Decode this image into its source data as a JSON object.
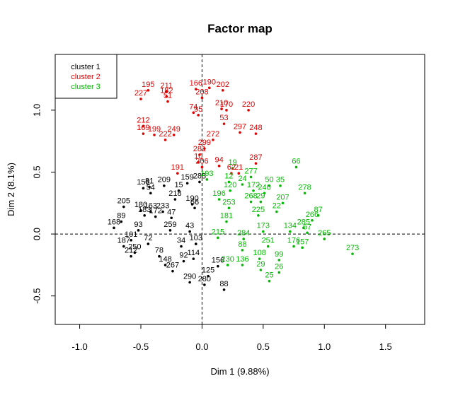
{
  "chart_data": {
    "type": "scatter",
    "title": "Factor map",
    "xlabel": "Dim 1 (9.88%)",
    "ylabel": "Dim 2 (8.1%)",
    "xlim": [
      -1.2,
      1.82
    ],
    "ylim": [
      -0.73,
      1.45
    ],
    "xticks": [
      -1.0,
      -0.5,
      0.0,
      0.5,
      1.0,
      1.5
    ],
    "xtick_labels": [
      "-1.0",
      "-0.5",
      "0.0",
      "0.5",
      "1.0",
      "1.5"
    ],
    "yticks": [
      -0.5,
      0.0,
      0.5,
      1.0
    ],
    "ytick_labels": [
      "-0.5",
      "0.0",
      "0.5",
      "1.0"
    ],
    "reference_lines": {
      "x": 0,
      "y": 0,
      "style": "dashed"
    },
    "legend": {
      "position": "top-left",
      "entries": [
        {
          "label": "cluster 1",
          "color": "#000000"
        },
        {
          "label": "cluster 2",
          "color": "#dd0000"
        },
        {
          "label": "cluster 3",
          "color": "#00bb00"
        }
      ]
    },
    "series": [
      {
        "name": "cluster 1",
        "color": "#000000",
        "points": [
          {
            "x": -0.48,
            "y": 0.37,
            "label": "158"
          },
          {
            "x": -0.43,
            "y": 0.38,
            "label": "81"
          },
          {
            "x": -0.31,
            "y": 0.39,
            "label": "209"
          },
          {
            "x": -0.42,
            "y": 0.33,
            "label": "54"
          },
          {
            "x": -0.19,
            "y": 0.35,
            "label": "15"
          },
          {
            "x": -0.12,
            "y": 0.41,
            "label": "159"
          },
          {
            "x": -0.02,
            "y": 0.42,
            "label": "288"
          },
          {
            "x": -0.22,
            "y": 0.28,
            "label": "218"
          },
          {
            "x": -0.64,
            "y": 0.22,
            "label": "205"
          },
          {
            "x": -0.5,
            "y": 0.19,
            "label": "180"
          },
          {
            "x": -0.42,
            "y": 0.18,
            "label": "163"
          },
          {
            "x": -0.32,
            "y": 0.18,
            "label": "233"
          },
          {
            "x": -0.47,
            "y": 0.15,
            "label": "183"
          },
          {
            "x": -0.38,
            "y": 0.14,
            "label": "172"
          },
          {
            "x": -0.25,
            "y": 0.13,
            "label": "47"
          },
          {
            "x": -0.08,
            "y": 0.24,
            "label": "190"
          },
          {
            "x": -0.06,
            "y": 0.21,
            "label": "66"
          },
          {
            "x": -0.66,
            "y": 0.1,
            "label": "89"
          },
          {
            "x": -0.72,
            "y": 0.05,
            "label": "168"
          },
          {
            "x": -0.52,
            "y": 0.03,
            "label": "93"
          },
          {
            "x": -0.26,
            "y": 0.03,
            "label": "259"
          },
          {
            "x": -0.1,
            "y": 0.02,
            "label": "43"
          },
          {
            "x": -0.58,
            "y": -0.05,
            "label": "101"
          },
          {
            "x": -0.44,
            "y": -0.08,
            "label": "72"
          },
          {
            "x": -0.64,
            "y": -0.1,
            "label": "187"
          },
          {
            "x": -0.55,
            "y": -0.15,
            "label": "250"
          },
          {
            "x": -0.35,
            "y": -0.18,
            "label": "78"
          },
          {
            "x": -0.17,
            "y": -0.1,
            "label": "34"
          },
          {
            "x": -0.05,
            "y": -0.08,
            "label": "103"
          },
          {
            "x": -0.58,
            "y": -0.18,
            "label": "212"
          },
          {
            "x": -0.3,
            "y": -0.25,
            "label": "148"
          },
          {
            "x": -0.15,
            "y": -0.22,
            "label": "92"
          },
          {
            "x": -0.07,
            "y": -0.2,
            "label": "114"
          },
          {
            "x": 0.13,
            "y": -0.26,
            "label": "156"
          },
          {
            "x": -0.24,
            "y": -0.3,
            "label": "267"
          },
          {
            "x": 0.05,
            "y": -0.34,
            "label": "125"
          },
          {
            "x": -0.1,
            "y": -0.39,
            "label": "290"
          },
          {
            "x": 0.02,
            "y": -0.41,
            "label": "280"
          },
          {
            "x": 0.18,
            "y": -0.45,
            "label": "88"
          }
        ]
      },
      {
        "name": "cluster 2",
        "color": "#dd0000",
        "points": [
          {
            "x": -0.44,
            "y": 1.16,
            "label": "195"
          },
          {
            "x": -0.29,
            "y": 1.15,
            "label": "211"
          },
          {
            "x": -0.05,
            "y": 1.17,
            "label": "166"
          },
          {
            "x": 0.06,
            "y": 1.18,
            "label": "190"
          },
          {
            "x": 0.17,
            "y": 1.16,
            "label": "202"
          },
          {
            "x": -0.5,
            "y": 1.09,
            "label": "227"
          },
          {
            "x": -0.29,
            "y": 1.11,
            "label": "182"
          },
          {
            "x": -0.28,
            "y": 1.07,
            "label": "51"
          },
          {
            "x": 0.0,
            "y": 1.1,
            "label": "208"
          },
          {
            "x": -0.07,
            "y": 0.98,
            "label": "74"
          },
          {
            "x": -0.03,
            "y": 0.96,
            "label": "95"
          },
          {
            "x": 0.16,
            "y": 1.01,
            "label": "210"
          },
          {
            "x": 0.2,
            "y": 1.0,
            "label": "170"
          },
          {
            "x": 0.38,
            "y": 1.0,
            "label": "220"
          },
          {
            "x": 0.18,
            "y": 0.89,
            "label": "53"
          },
          {
            "x": -0.48,
            "y": 0.87,
            "label": "212"
          },
          {
            "x": -0.48,
            "y": 0.81,
            "label": "169"
          },
          {
            "x": -0.39,
            "y": 0.8,
            "label": "199"
          },
          {
            "x": -0.23,
            "y": 0.8,
            "label": "249"
          },
          {
            "x": -0.3,
            "y": 0.76,
            "label": "222"
          },
          {
            "x": 0.31,
            "y": 0.82,
            "label": "297"
          },
          {
            "x": 0.44,
            "y": 0.81,
            "label": "248"
          },
          {
            "x": 0.09,
            "y": 0.76,
            "label": "272"
          },
          {
            "x": 0.02,
            "y": 0.69,
            "label": "299"
          },
          {
            "x": -0.02,
            "y": 0.64,
            "label": "281"
          },
          {
            "x": -0.03,
            "y": 0.58,
            "label": "10"
          },
          {
            "x": 0.0,
            "y": 0.54,
            "label": "206"
          },
          {
            "x": 0.14,
            "y": 0.55,
            "label": "94"
          },
          {
            "x": 0.44,
            "y": 0.57,
            "label": "287"
          },
          {
            "x": -0.2,
            "y": 0.49,
            "label": "191"
          },
          {
            "x": 0.24,
            "y": 0.49,
            "label": "62"
          },
          {
            "x": 0.3,
            "y": 0.49,
            "label": "21"
          }
        ]
      },
      {
        "name": "cluster 3",
        "color": "#00bb00",
        "points": [
          {
            "x": 0.77,
            "y": 0.54,
            "label": "66"
          },
          {
            "x": 0.25,
            "y": 0.53,
            "label": "19"
          },
          {
            "x": 0.4,
            "y": 0.46,
            "label": "277"
          },
          {
            "x": 0.04,
            "y": 0.44,
            "label": "193"
          },
          {
            "x": 0.22,
            "y": 0.42,
            "label": "12"
          },
          {
            "x": 0.33,
            "y": 0.4,
            "label": "24"
          },
          {
            "x": 0.55,
            "y": 0.39,
            "label": "50"
          },
          {
            "x": 0.64,
            "y": 0.39,
            "label": "35"
          },
          {
            "x": 0.23,
            "y": 0.35,
            "label": "120"
          },
          {
            "x": 0.42,
            "y": 0.35,
            "label": "172"
          },
          {
            "x": 0.51,
            "y": 0.33,
            "label": "240"
          },
          {
            "x": 0.84,
            "y": 0.33,
            "label": "278"
          },
          {
            "x": 0.14,
            "y": 0.28,
            "label": "196"
          },
          {
            "x": 0.4,
            "y": 0.26,
            "label": "268"
          },
          {
            "x": 0.48,
            "y": 0.26,
            "label": "29"
          },
          {
            "x": 0.66,
            "y": 0.25,
            "label": "207"
          },
          {
            "x": 0.22,
            "y": 0.21,
            "label": "253"
          },
          {
            "x": 0.61,
            "y": 0.18,
            "label": "22"
          },
          {
            "x": 0.46,
            "y": 0.15,
            "label": "225"
          },
          {
            "x": 0.95,
            "y": 0.15,
            "label": "87"
          },
          {
            "x": 0.9,
            "y": 0.11,
            "label": "266"
          },
          {
            "x": 0.2,
            "y": 0.1,
            "label": "181"
          },
          {
            "x": 0.5,
            "y": 0.02,
            "label": "173"
          },
          {
            "x": 0.72,
            "y": 0.02,
            "label": "134"
          },
          {
            "x": 0.83,
            "y": 0.05,
            "label": "285"
          },
          {
            "x": 0.86,
            "y": 0.01,
            "label": "67"
          },
          {
            "x": 0.13,
            "y": -0.03,
            "label": "215"
          },
          {
            "x": 0.34,
            "y": -0.04,
            "label": "284"
          },
          {
            "x": 1.0,
            "y": -0.04,
            "label": "265"
          },
          {
            "x": 0.54,
            "y": -0.1,
            "label": "251"
          },
          {
            "x": 0.75,
            "y": -0.1,
            "label": "176"
          },
          {
            "x": 0.82,
            "y": -0.11,
            "label": "157"
          },
          {
            "x": 0.33,
            "y": -0.13,
            "label": "88"
          },
          {
            "x": 1.23,
            "y": -0.16,
            "label": "273"
          },
          {
            "x": 0.47,
            "y": -0.2,
            "label": "108"
          },
          {
            "x": 0.63,
            "y": -0.21,
            "label": "99"
          },
          {
            "x": 0.33,
            "y": -0.25,
            "label": "136"
          },
          {
            "x": 0.21,
            "y": -0.25,
            "label": "230"
          },
          {
            "x": 0.48,
            "y": -0.29,
            "label": "29"
          },
          {
            "x": 0.63,
            "y": -0.31,
            "label": "26"
          },
          {
            "x": 0.55,
            "y": -0.38,
            "label": "25"
          }
        ]
      }
    ]
  }
}
